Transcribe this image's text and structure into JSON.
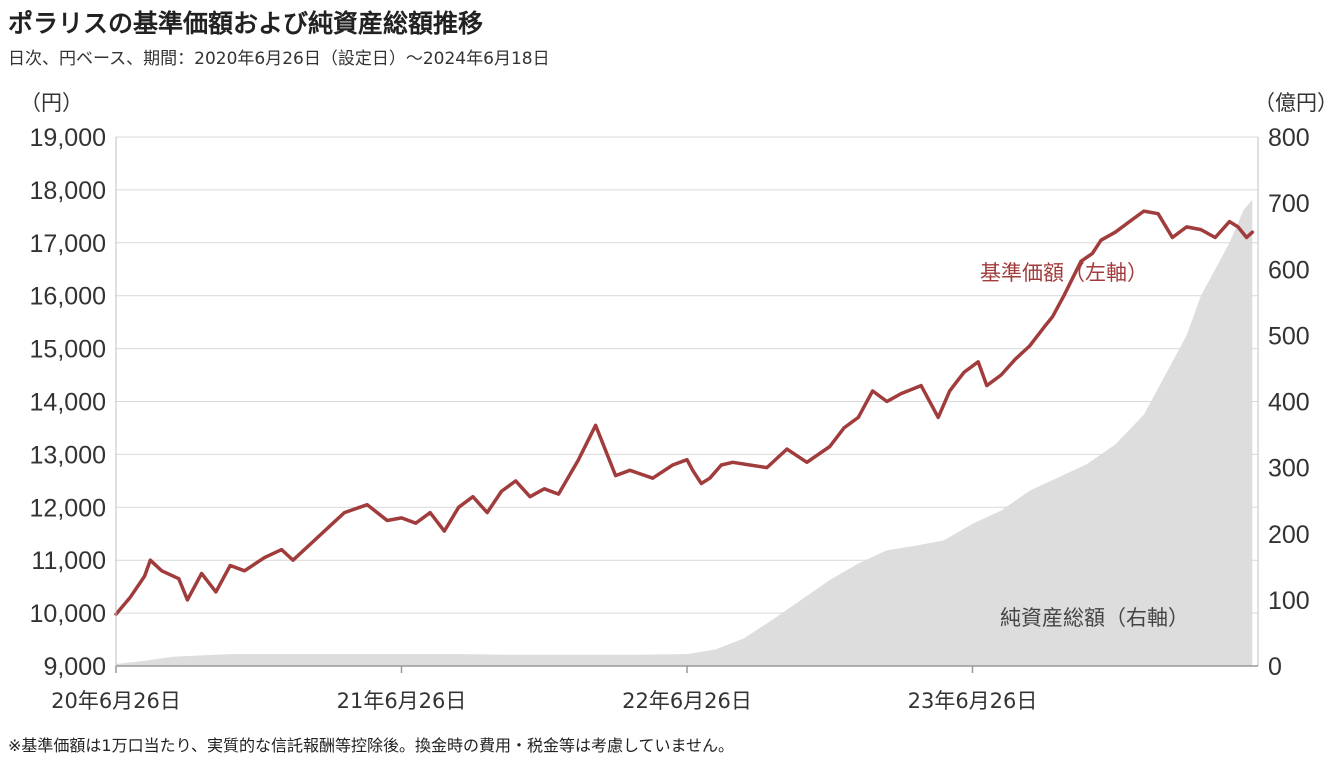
{
  "header": {
    "title": "ポラリスの基準価額および純資産総額推移",
    "subtitle": "日次、円ベース、期間：2020年6月26日（設定日）～2024年6月18日"
  },
  "footnote": "※基準価額は1万口当たり、実質的な信託報酬等控除後。換金時の費用・税金等は考慮していません。",
  "chart_data": {
    "type": "line",
    "x_labels": [
      "20年6月26日",
      "21年6月26日",
      "22年6月26日",
      "23年6月26日"
    ],
    "left_axis": {
      "unit": "（円）",
      "ylim": [
        9000,
        19000
      ],
      "ticks": [
        "9,000",
        "10,000",
        "11,000",
        "12,000",
        "13,000",
        "14,000",
        "15,000",
        "16,000",
        "17,000",
        "18,000",
        "19,000"
      ]
    },
    "right_axis": {
      "unit": "（億円）",
      "ylim": [
        0,
        800
      ],
      "ticks": [
        "0",
        "100",
        "200",
        "300",
        "400",
        "500",
        "600",
        "700",
        "800"
      ]
    },
    "xlim": [
      0,
      4
    ],
    "grid": "horizontal",
    "series": [
      {
        "name": "基準価額（左軸）",
        "axis": "left",
        "type": "line",
        "color": "#a13c3c",
        "x": [
          0,
          0.05,
          0.1,
          0.12,
          0.16,
          0.22,
          0.25,
          0.3,
          0.35,
          0.4,
          0.45,
          0.52,
          0.58,
          0.62,
          0.7,
          0.75,
          0.8,
          0.88,
          0.95,
          1.0,
          1.05,
          1.1,
          1.15,
          1.2,
          1.25,
          1.3,
          1.35,
          1.4,
          1.45,
          1.5,
          1.55,
          1.62,
          1.68,
          1.75,
          1.8,
          1.88,
          1.95,
          2.0,
          2.02,
          2.05,
          2.08,
          2.12,
          2.16,
          2.22,
          2.28,
          2.35,
          2.42,
          2.5,
          2.55,
          2.6,
          2.65,
          2.7,
          2.75,
          2.82,
          2.88,
          2.92,
          2.97,
          3.02,
          3.05,
          3.1,
          3.15,
          3.2,
          3.25,
          3.28,
          3.32,
          3.38,
          3.42,
          3.45,
          3.5,
          3.55,
          3.6,
          3.65,
          3.7,
          3.75,
          3.8,
          3.85,
          3.9,
          3.93,
          3.96,
          3.98
        ],
        "values": [
          9980,
          10300,
          10700,
          11000,
          10800,
          10650,
          10250,
          10750,
          10400,
          10900,
          10800,
          11050,
          11200,
          11000,
          11400,
          11650,
          11900,
          12050,
          11750,
          11800,
          11700,
          11900,
          11550,
          12000,
          12200,
          11900,
          12300,
          12500,
          12200,
          12350,
          12250,
          12900,
          13550,
          12600,
          12700,
          12550,
          12800,
          12900,
          12700,
          12450,
          12550,
          12800,
          12850,
          12800,
          12750,
          13100,
          12850,
          13150,
          13500,
          13700,
          14200,
          14000,
          14150,
          14300,
          13700,
          14200,
          14550,
          14750,
          14300,
          14500,
          14800,
          15050,
          15400,
          15600,
          16000,
          16650,
          16800,
          17050,
          17200,
          17400,
          17600,
          17550,
          17100,
          17300,
          17250,
          17100,
          17400,
          17300,
          17100,
          17200
        ]
      },
      {
        "name": "純資産総額（右軸）",
        "axis": "right",
        "type": "area",
        "color": "#dddddd",
        "x": [
          0,
          0.1,
          0.2,
          0.3,
          0.4,
          0.6,
          0.8,
          1.0,
          1.2,
          1.4,
          1.6,
          1.8,
          2.0,
          2.1,
          2.2,
          2.3,
          2.4,
          2.5,
          2.6,
          2.7,
          2.8,
          2.9,
          3.0,
          3.1,
          3.2,
          3.3,
          3.4,
          3.5,
          3.6,
          3.7,
          3.75,
          3.8,
          3.85,
          3.9,
          3.95,
          3.98
        ],
        "values": [
          3,
          8,
          14,
          16,
          18,
          18,
          18,
          18,
          18,
          17,
          17,
          17,
          18,
          25,
          42,
          70,
          100,
          130,
          155,
          175,
          182,
          190,
          215,
          235,
          265,
          285,
          305,
          335,
          380,
          460,
          500,
          560,
          600,
          640,
          690,
          705
        ]
      }
    ]
  }
}
